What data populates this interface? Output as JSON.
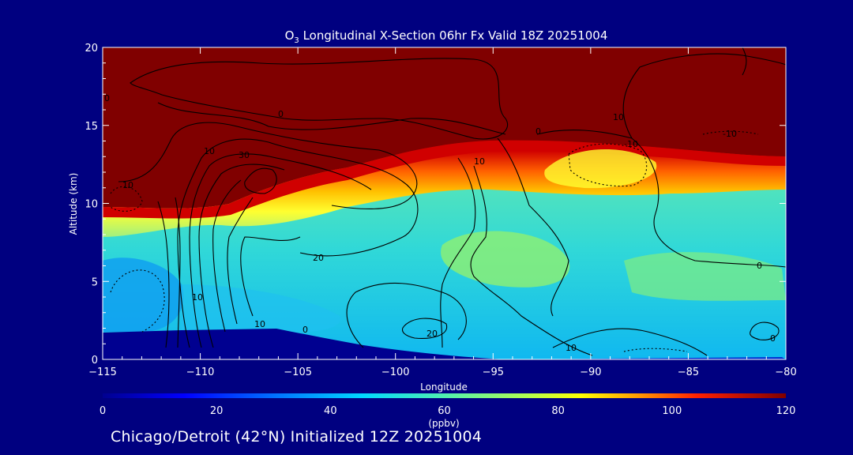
{
  "chart_data": {
    "type": "heatmap",
    "title_prefix": "O",
    "title_sub": "3",
    "title_rest": " Longitudinal X-Section 06hr  Fx Valid 18Z 20251004",
    "xlabel": "Longitude",
    "ylabel": "Altitude (km)",
    "xlim": [
      -115,
      -80
    ],
    "ylim": [
      0,
      20
    ],
    "x_ticks": [
      -115,
      -110,
      -105,
      -100,
      -95,
      -90,
      -85,
      -80
    ],
    "x_tick_labels": [
      "−115",
      "−110",
      "−105",
      "−100",
      "−95",
      "−90",
      "−85",
      "−80"
    ],
    "y_ticks": [
      0,
      5,
      10,
      15,
      20
    ],
    "y_tick_labels": [
      "0",
      "5",
      "10",
      "15",
      "20"
    ],
    "colorbar": {
      "range": [
        0,
        120
      ],
      "ticks": [
        0,
        20,
        40,
        60,
        80,
        100,
        120
      ],
      "tick_labels": [
        "0",
        "20",
        "40",
        "60",
        "80",
        "100",
        "120"
      ],
      "units": "(ppbv)"
    },
    "colorscale": [
      "#00008f",
      "#0050ff",
      "#00d0ff",
      "#60f0a0",
      "#ffff00",
      "#ff8000",
      "#cc0000",
      "#800000"
    ],
    "field_summary": {
      "surface_terrain_km": [
        [
          -115,
          1.7
        ],
        [
          -105,
          2.0
        ],
        [
          -103,
          1.6
        ],
        [
          -97,
          0.6
        ],
        [
          -92,
          0.3
        ],
        [
          -80,
          0.3
        ]
      ],
      "tropopause_km": [
        [
          -115,
          9.2
        ],
        [
          -110,
          9.4
        ],
        [
          -106,
          11.0
        ],
        [
          -101,
          12.4
        ],
        [
          -96,
          13.6
        ],
        [
          -90,
          13.6
        ],
        [
          -85,
          13.0
        ],
        [
          -80,
          13.0
        ]
      ],
      "stratospheric_ozone_ppbv": 120,
      "tropospheric_ozone_ppbv_range": [
        35,
        60
      ]
    },
    "contour_labels": [
      "0",
      "0",
      "0",
      "0",
      "0",
      "0",
      "10",
      "10",
      "10",
      "10",
      "10",
      "20",
      "20",
      "30",
      "10",
      "-10",
      "-10",
      "10"
    ]
  },
  "footer": {
    "caption": "Chicago/Detroit (42°N) Initialized 12Z 20251004"
  },
  "colors": {
    "background": "#000080",
    "text": "#ffffff",
    "contour": "#000000"
  }
}
